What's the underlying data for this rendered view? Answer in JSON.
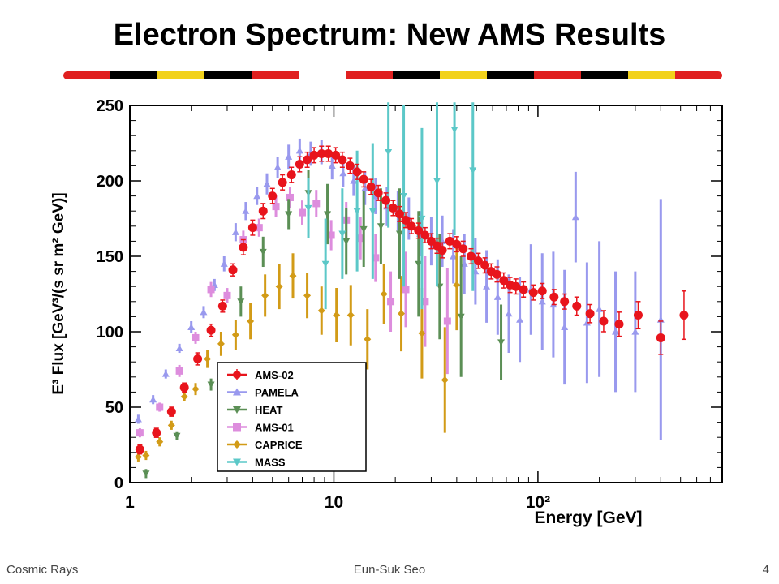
{
  "slide": {
    "title": "Electron Spectrum: New AMS Results",
    "footer_left": "Cosmic Rays",
    "footer_center": "Eun-Suk Seo",
    "footer_right": "4"
  },
  "banner_colors": [
    "#e02020",
    "#000000",
    "#f2d21c",
    "#000000",
    "#e02020",
    "#ffffff",
    "#e02020",
    "#000000",
    "#f2d21c",
    "#000000",
    "#e02020",
    "#000000",
    "#f2d21c",
    "#e02020"
  ],
  "chart_data": {
    "type": "scatter",
    "title": "",
    "xlabel": "Energy [GeV]",
    "ylabel": "E³ Flux [GeV³/(s sr m² GeV)]",
    "x_scale": "log",
    "xlim": [
      1,
      800
    ],
    "ylim": [
      0,
      250
    ],
    "x_ticks": [
      {
        "value": 1,
        "label": "1"
      },
      {
        "value": 10,
        "label": "10"
      },
      {
        "value": 100,
        "label": "10²"
      }
    ],
    "y_ticks": [
      0,
      50,
      100,
      150,
      200,
      250
    ],
    "legend_position": "bottom-left",
    "grid": false,
    "series": [
      {
        "name": "AMS-02",
        "color": "#e8141c",
        "marker": "circle",
        "points": [
          [
            1.12,
            22,
            3
          ],
          [
            1.35,
            33,
            3
          ],
          [
            1.6,
            47,
            3
          ],
          [
            1.85,
            63,
            3
          ],
          [
            2.15,
            82,
            4
          ],
          [
            2.5,
            101,
            4
          ],
          [
            2.85,
            117,
            4
          ],
          [
            3.2,
            141,
            4
          ],
          [
            3.6,
            156,
            5
          ],
          [
            4.0,
            169,
            5
          ],
          [
            4.5,
            180,
            5
          ],
          [
            5.0,
            190,
            5
          ],
          [
            5.6,
            199,
            5
          ],
          [
            6.2,
            204,
            5
          ],
          [
            6.8,
            211,
            5
          ],
          [
            7.4,
            214,
            5
          ],
          [
            8.0,
            217,
            5
          ],
          [
            8.7,
            218,
            5
          ],
          [
            9.4,
            218,
            5
          ],
          [
            10.2,
            217,
            5
          ],
          [
            11.0,
            214,
            5
          ],
          [
            12.0,
            210,
            5
          ],
          [
            13.0,
            206,
            5
          ],
          [
            14.0,
            201,
            5
          ],
          [
            15.2,
            196,
            5
          ],
          [
            16.5,
            192,
            5
          ],
          [
            18.0,
            187,
            5
          ],
          [
            19.5,
            182,
            5
          ],
          [
            21.0,
            178,
            5
          ],
          [
            22.5,
            174,
            5
          ],
          [
            24.0,
            170,
            5
          ],
          [
            26.0,
            167,
            5
          ],
          [
            28.0,
            164,
            5
          ],
          [
            30.0,
            160,
            5
          ],
          [
            32.0,
            157,
            5
          ],
          [
            34.0,
            154,
            5
          ],
          [
            37.0,
            160,
            5
          ],
          [
            40.0,
            158,
            5
          ],
          [
            43.0,
            155,
            5
          ],
          [
            47.0,
            150,
            5
          ],
          [
            51.0,
            147,
            5
          ],
          [
            55.0,
            144,
            5
          ],
          [
            59.0,
            140,
            5
          ],
          [
            63.0,
            138,
            5
          ],
          [
            68.0,
            134,
            5
          ],
          [
            73.0,
            131,
            5
          ],
          [
            78.0,
            130,
            5
          ],
          [
            85.0,
            128,
            5
          ],
          [
            95.0,
            126,
            5
          ],
          [
            105.0,
            127,
            5
          ],
          [
            120.0,
            123,
            5
          ],
          [
            135.0,
            120,
            5
          ],
          [
            155.0,
            117,
            6
          ],
          [
            180.0,
            112,
            6
          ],
          [
            210.0,
            107,
            7
          ],
          [
            250.0,
            105,
            8
          ],
          [
            310.0,
            111,
            9
          ],
          [
            400.0,
            96,
            11
          ],
          [
            520.0,
            111,
            16
          ]
        ]
      },
      {
        "name": "PAMELA",
        "color": "#9999ee",
        "marker": "triangle-up",
        "points": [
          [
            1.1,
            42,
            3
          ],
          [
            1.3,
            55,
            3
          ],
          [
            1.5,
            72,
            3
          ],
          [
            1.75,
            89,
            3
          ],
          [
            2.0,
            103,
            4
          ],
          [
            2.3,
            113,
            4
          ],
          [
            2.6,
            131,
            4
          ],
          [
            2.9,
            145,
            5
          ],
          [
            3.3,
            166,
            6
          ],
          [
            3.7,
            180,
            6
          ],
          [
            4.2,
            190,
            6
          ],
          [
            4.7,
            198,
            7
          ],
          [
            5.3,
            209,
            7
          ],
          [
            6.0,
            216,
            8
          ],
          [
            6.8,
            220,
            8
          ],
          [
            7.7,
            218,
            8
          ],
          [
            8.7,
            219,
            8
          ],
          [
            9.8,
            210,
            9
          ],
          [
            11.1,
            205,
            9
          ],
          [
            12.5,
            200,
            10
          ],
          [
            14.2,
            195,
            11
          ],
          [
            16.0,
            190,
            12
          ],
          [
            18.2,
            183,
            13
          ],
          [
            20.6,
            180,
            13
          ],
          [
            23.3,
            175,
            14
          ],
          [
            26.4,
            165,
            15
          ],
          [
            30.0,
            160,
            16
          ],
          [
            34.0,
            160,
            17
          ],
          [
            38.5,
            150,
            18
          ],
          [
            43.6,
            145,
            20
          ],
          [
            49.4,
            140,
            22
          ],
          [
            56.0,
            130,
            24
          ],
          [
            63.5,
            123,
            25
          ],
          [
            72.0,
            112,
            26
          ],
          [
            81.5,
            108,
            28
          ],
          [
            92.4,
            128,
            30
          ],
          [
            105.0,
            120,
            32
          ],
          [
            119.0,
            118,
            35
          ],
          [
            135.0,
            103,
            38
          ],
          [
            153.0,
            176,
            30
          ],
          [
            174.0,
            106,
            40
          ],
          [
            200.0,
            115,
            45
          ],
          [
            240.0,
            100,
            40
          ],
          [
            300.0,
            100,
            40
          ],
          [
            400.0,
            108,
            80
          ]
        ]
      },
      {
        "name": "HEAT",
        "color": "#5b8f55",
        "marker": "triangle-down",
        "points": [
          [
            1.2,
            6,
            3
          ],
          [
            1.7,
            31,
            3
          ],
          [
            2.5,
            65,
            4
          ],
          [
            3.5,
            120,
            10
          ],
          [
            4.5,
            153,
            10
          ],
          [
            6.0,
            178,
            10
          ],
          [
            7.5,
            192,
            15
          ],
          [
            9.3,
            178,
            20
          ],
          [
            11.5,
            160,
            22
          ],
          [
            14.0,
            168,
            25
          ],
          [
            17.0,
            170,
            25
          ],
          [
            21.0,
            165,
            30
          ],
          [
            26.0,
            145,
            35
          ],
          [
            33.0,
            130,
            35
          ],
          [
            42.0,
            110,
            40
          ],
          [
            66.0,
            93,
            25
          ]
        ]
      },
      {
        "name": "AMS-01",
        "color": "#dd8ddd",
        "marker": "square",
        "points": [
          [
            1.12,
            33,
            3
          ],
          [
            1.4,
            50,
            3
          ],
          [
            1.75,
            74,
            4
          ],
          [
            2.1,
            96,
            4
          ],
          [
            2.5,
            128,
            5
          ],
          [
            3.0,
            124,
            5
          ],
          [
            3.6,
            161,
            6
          ],
          [
            4.3,
            169,
            6
          ],
          [
            5.2,
            183,
            7
          ],
          [
            6.1,
            189,
            7
          ],
          [
            7.0,
            179,
            8
          ],
          [
            8.2,
            185,
            9
          ],
          [
            9.7,
            164,
            10
          ],
          [
            11.5,
            174,
            12
          ],
          [
            13.5,
            162,
            14
          ],
          [
            16.0,
            149,
            16
          ],
          [
            19.0,
            120,
            20
          ],
          [
            22.5,
            128,
            25
          ],
          [
            28.0,
            120,
            30
          ],
          [
            36.0,
            107,
            35
          ]
        ]
      },
      {
        "name": "CAPRICE",
        "color": "#d29b17",
        "marker": "diamond",
        "points": [
          [
            1.1,
            17,
            3
          ],
          [
            1.2,
            18,
            3
          ],
          [
            1.4,
            27,
            3
          ],
          [
            1.6,
            38,
            3
          ],
          [
            1.85,
            57,
            3
          ],
          [
            2.1,
            62,
            4
          ],
          [
            2.4,
            82,
            6
          ],
          [
            2.8,
            92,
            8
          ],
          [
            3.3,
            98,
            10
          ],
          [
            3.9,
            107,
            12
          ],
          [
            4.6,
            124,
            14
          ],
          [
            5.4,
            130,
            15
          ],
          [
            6.3,
            137,
            15
          ],
          [
            7.4,
            124,
            15
          ],
          [
            8.7,
            114,
            16
          ],
          [
            10.3,
            111,
            18
          ],
          [
            12.1,
            111,
            20
          ],
          [
            14.6,
            95,
            20
          ],
          [
            17.6,
            125,
            20
          ],
          [
            21.4,
            112,
            25
          ],
          [
            27.0,
            99,
            30
          ],
          [
            35.0,
            68,
            35
          ],
          [
            40.0,
            131,
            30
          ]
        ]
      },
      {
        "name": "MASS",
        "color": "#5cc8c8",
        "marker": "triangle-down",
        "points": [
          [
            7.5,
            182,
            20
          ],
          [
            9.1,
            145,
            30
          ],
          [
            11.0,
            165,
            30
          ],
          [
            13.0,
            180,
            40
          ],
          [
            15.5,
            180,
            45
          ],
          [
            18.5,
            219,
            50
          ],
          [
            22.0,
            190,
            60
          ],
          [
            27.0,
            175,
            60
          ],
          [
            32.0,
            200,
            70
          ],
          [
            39.0,
            234,
            70
          ],
          [
            48.0,
            207,
            80
          ]
        ]
      }
    ]
  }
}
